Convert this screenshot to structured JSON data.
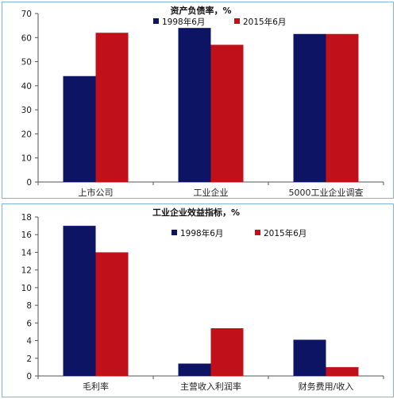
{
  "colors": {
    "series_1998": "#0d1464",
    "series_2015": "#c0101a",
    "axis": "#555555",
    "border": "#7fb6df"
  },
  "chart_data": [
    {
      "type": "bar",
      "title": "资产负债率，%",
      "categories": [
        "上市公司",
        "工业企业",
        "5000工业企业调查"
      ],
      "series": [
        {
          "name": "1998年6月",
          "values": [
            44,
            64,
            61.5
          ]
        },
        {
          "name": "2015年6月",
          "values": [
            62,
            57,
            61.5
          ]
        }
      ],
      "ylim": [
        0,
        70
      ],
      "yticks": [
        0,
        10,
        20,
        30,
        40,
        50,
        60,
        70
      ],
      "grid": false,
      "legend": "top"
    },
    {
      "type": "bar",
      "title": "工业企业效益指标，%",
      "categories": [
        "毛利率",
        "主营收入利润率",
        "财务费用/收入"
      ],
      "series": [
        {
          "name": "1998年6月",
          "values": [
            17,
            1.4,
            4.1
          ]
        },
        {
          "name": "2015年6月",
          "values": [
            14,
            5.4,
            1.0
          ]
        }
      ],
      "ylim": [
        0,
        18
      ],
      "yticks": [
        0,
        2,
        4,
        6,
        8,
        10,
        12,
        14,
        16,
        18
      ],
      "grid": false,
      "legend": "top"
    }
  ]
}
